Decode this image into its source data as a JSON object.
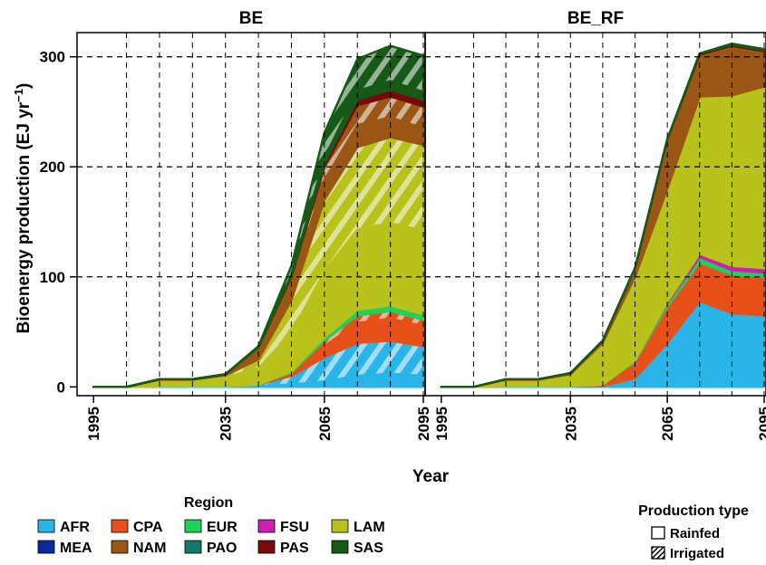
{
  "figure": {
    "ylabel_main": "Bioenergy production (EJ yr",
    "ylabel_sup": "−1",
    "ylabel_close": ")",
    "xlabel": "Year",
    "region_legend_title": "Region",
    "prodtype_legend_title": "Production type",
    "prodtype_items": [
      {
        "label": "Rainfed",
        "pattern": "none"
      },
      {
        "label": "Irrigated",
        "pattern": "hatched"
      }
    ]
  },
  "regions": [
    {
      "code": "AFR",
      "color": "#2ab5e8"
    },
    {
      "code": "CPA",
      "color": "#e8501a"
    },
    {
      "code": "EUR",
      "color": "#1ed15a"
    },
    {
      "code": "FSU",
      "color": "#cc1fb4"
    },
    {
      "code": "LAM",
      "color": "#b8c21a"
    },
    {
      "code": "MEA",
      "color": "#0a2a9a"
    },
    {
      "code": "NAM",
      "color": "#9a5614"
    },
    {
      "code": "PAO",
      "color": "#127a6a"
    },
    {
      "code": "PAS",
      "color": "#7a0a0a"
    },
    {
      "code": "SAS",
      "color": "#175a17"
    }
  ],
  "chart_data": [
    {
      "type": "area",
      "title": "BE",
      "x": [
        1995,
        2005,
        2015,
        2025,
        2035,
        2045,
        2055,
        2065,
        2075,
        2085,
        2095
      ],
      "xticks": [
        "1995",
        "2035",
        "2065",
        "2095"
      ],
      "yticks": [
        "0",
        "100",
        "200",
        "300"
      ],
      "ylim": [
        -8,
        322
      ],
      "xlim": [
        1990,
        2095
      ],
      "grid": "horizontal dashed at 100, 200, 300; vertical dashed at each x",
      "series": [
        {
          "name": "AFR",
          "type": "Rainfed",
          "values": [
            0,
            0,
            0.5,
            0.5,
            0.5,
            1,
            2,
            5,
            10,
            12,
            10
          ]
        },
        {
          "name": "AFR",
          "type": "Irrigated",
          "values": [
            0,
            0,
            0,
            0,
            0,
            1,
            8,
            22,
            30,
            30,
            27
          ]
        },
        {
          "name": "CPA",
          "type": "Rainfed",
          "values": [
            0,
            0,
            0,
            0,
            0,
            0,
            2,
            10,
            18,
            20,
            18
          ]
        },
        {
          "name": "CPA",
          "type": "Irrigated",
          "values": [
            0,
            0,
            0,
            0,
            0,
            0,
            1,
            5,
            7,
            7,
            6
          ]
        },
        {
          "name": "EUR",
          "type": "Rainfed",
          "values": [
            0,
            0,
            0,
            0,
            0,
            0,
            1,
            2,
            4,
            4,
            4
          ]
        },
        {
          "name": "EUR",
          "type": "Irrigated",
          "values": [
            0,
            0,
            0,
            0,
            0,
            0,
            0,
            1,
            1,
            1,
            1
          ]
        },
        {
          "name": "LAM",
          "type": "Rainfed",
          "values": [
            0,
            0,
            5,
            5,
            8,
            15,
            35,
            60,
            73,
            75,
            76
          ]
        },
        {
          "name": "LAM",
          "type": "Irrigated",
          "values": [
            0,
            0,
            1,
            1,
            2,
            8,
            30,
            65,
            75,
            78,
            78
          ]
        },
        {
          "name": "NAM",
          "type": "Rainfed",
          "values": [
            0,
            0,
            0.5,
            0.5,
            1,
            8,
            15,
            18,
            20,
            18,
            15
          ]
        },
        {
          "name": "NAM",
          "type": "Irrigated",
          "values": [
            0,
            0,
            0,
            0,
            0,
            3,
            6,
            12,
            18,
            19,
            20
          ]
        },
        {
          "name": "PAS",
          "type": "Rainfed",
          "values": [
            0,
            0,
            0,
            0,
            0,
            0,
            1,
            2,
            3,
            4,
            4
          ]
        },
        {
          "name": "PAS",
          "type": "Irrigated",
          "values": [
            0,
            0,
            0,
            0,
            0,
            0,
            0,
            1,
            2,
            2,
            2
          ]
        },
        {
          "name": "SAS",
          "type": "Rainfed",
          "values": [
            0,
            0,
            0,
            0,
            0,
            0,
            1,
            5,
            8,
            8,
            7
          ]
        },
        {
          "name": "SAS",
          "type": "Irrigated",
          "values": [
            0,
            0,
            0,
            0,
            0,
            1,
            8,
            23,
            29,
            32,
            33
          ]
        }
      ]
    },
    {
      "type": "area",
      "title": "BE_RF",
      "x": [
        1995,
        2005,
        2015,
        2025,
        2035,
        2045,
        2055,
        2065,
        2075,
        2085,
        2095
      ],
      "xticks": [
        "1995",
        "2035",
        "2065",
        "2095"
      ],
      "yticks": [
        "0",
        "100",
        "200",
        "300"
      ],
      "ylim": [
        -8,
        322
      ],
      "xlim": [
        1990,
        2095
      ],
      "grid": "horizontal dashed at 100, 200, 300; vertical dashed at each x",
      "series": [
        {
          "name": "AFR",
          "type": "Rainfed",
          "values": [
            0,
            0,
            0.5,
            0.5,
            0.5,
            1,
            8,
            40,
            78,
            67,
            65
          ]
        },
        {
          "name": "CPA",
          "type": "Rainfed",
          "values": [
            0,
            0,
            0,
            0,
            0,
            1,
            15,
            33,
            35,
            35,
            35
          ]
        },
        {
          "name": "EUR",
          "type": "Rainfed",
          "values": [
            0,
            0,
            0,
            0,
            0,
            0,
            1,
            3,
            5,
            4,
            4
          ]
        },
        {
          "name": "FSU",
          "type": "Rainfed",
          "values": [
            0,
            0,
            0,
            0,
            0,
            0,
            0,
            1,
            3,
            4,
            4
          ]
        },
        {
          "name": "LAM",
          "type": "Rainfed",
          "values": [
            0,
            0,
            6,
            6,
            11,
            38,
            76,
            103,
            143,
            155,
            165
          ]
        },
        {
          "name": "NAM",
          "type": "Rainfed",
          "values": [
            0,
            0,
            0.5,
            0.5,
            1,
            2,
            8,
            45,
            38,
            45,
            32
          ]
        },
        {
          "name": "PAS",
          "type": "Rainfed",
          "values": [
            0,
            0,
            0,
            0,
            0,
            0,
            0,
            0,
            1,
            1,
            1
          ]
        },
        {
          "name": "SAS",
          "type": "Rainfed",
          "values": [
            0,
            0,
            0,
            0,
            0,
            0,
            0,
            0,
            0,
            1,
            1
          ]
        }
      ]
    }
  ]
}
